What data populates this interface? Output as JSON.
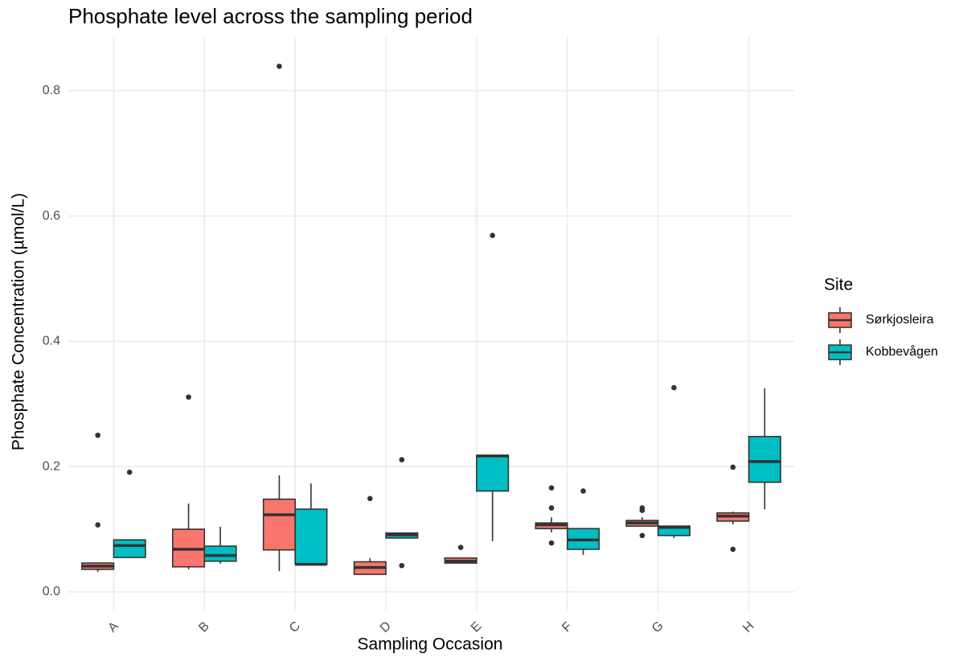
{
  "chart_data": {
    "type": "boxplot",
    "title": "Phosphate level across the sampling period",
    "x_label": "Sampling Occasion",
    "y_label": "Phosphate Concentration (µmol/L)",
    "legend_title": "Site",
    "legend_position": "right",
    "grid": true,
    "categories": [
      "A",
      "B",
      "C",
      "D",
      "E",
      "F",
      "G",
      "H"
    ],
    "ylim": [
      -0.031,
      0.887
    ],
    "yticks": [
      {
        "value": 0,
        "label": "0.0"
      },
      0.2,
      0.4,
      0.6,
      0.8
    ],
    "series": [
      {
        "name": "Sørkjosleira",
        "color": "#F8766D",
        "whislo": [
          0.032,
          0.036,
          0.033,
          0.028,
          0.046,
          0.095,
          0.105,
          0.108
        ],
        "q1": [
          0.036,
          0.04,
          0.067,
          0.028,
          0.046,
          0.101,
          0.105,
          0.113
        ],
        "med": [
          0.041,
          0.068,
          0.123,
          0.039,
          0.049,
          0.107,
          0.11,
          0.121
        ],
        "q3": [
          0.046,
          0.1,
          0.148,
          0.048,
          0.054,
          0.11,
          0.114,
          0.126
        ],
        "whishi": [
          0.046,
          0.141,
          0.186,
          0.054,
          0.054,
          0.119,
          0.119,
          0.128
        ],
        "outliers": [
          [
            0.25,
            0.107
          ],
          [
            0.311
          ],
          [
            0.839
          ],
          [
            0.149
          ],
          [
            0.071
          ],
          [
            0.166,
            0.134,
            0.078
          ],
          [
            0.134,
            0.13,
            0.09
          ],
          [
            0.199,
            0.068
          ]
        ]
      },
      {
        "name": "Kobbevågen",
        "color": "#00BFC4",
        "whislo": [
          0.055,
          0.045,
          0.044,
          0.086,
          0.081,
          0.059,
          0.086,
          0.132
        ],
        "q1": [
          0.055,
          0.049,
          0.044,
          0.086,
          0.161,
          0.068,
          0.09,
          0.175
        ],
        "med": [
          0.074,
          0.058,
          0.044,
          0.091,
          0.217,
          0.083,
          0.103,
          0.208
        ],
        "q3": [
          0.083,
          0.073,
          0.132,
          0.094,
          0.218,
          0.101,
          0.105,
          0.248
        ],
        "whishi": [
          0.083,
          0.104,
          0.173,
          0.094,
          0.218,
          0.101,
          0.105,
          0.325
        ],
        "outliers": [
          [
            0.191
          ],
          [],
          [],
          [
            0.211,
            0.042
          ],
          [
            0.569
          ],
          [
            0.161
          ],
          [
            0.326
          ],
          []
        ]
      }
    ]
  }
}
